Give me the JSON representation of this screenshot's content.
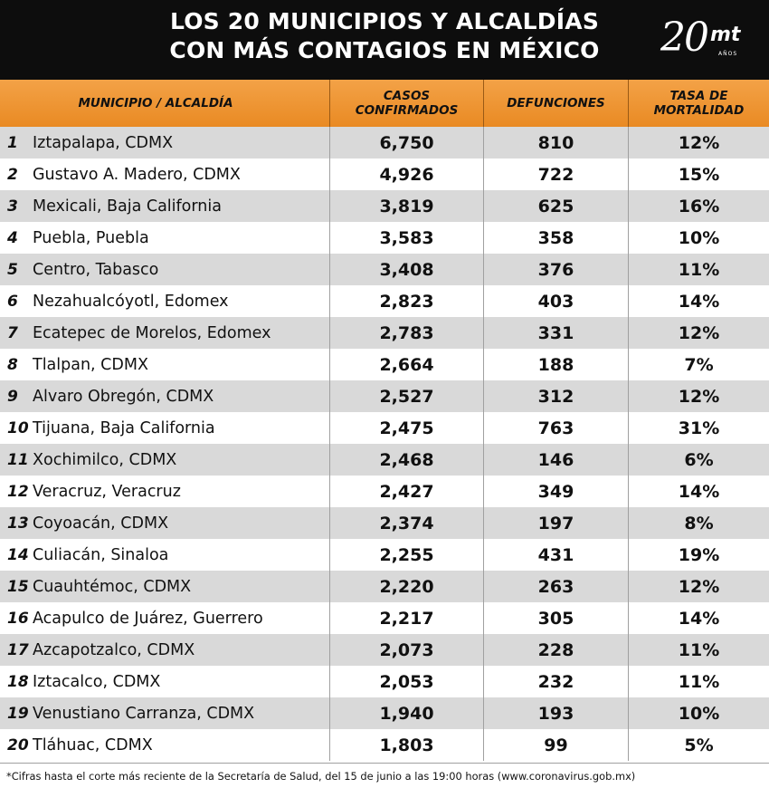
{
  "header": {
    "title_line1": "LOS 20 MUNICIPIOS Y ALCALDÍAS",
    "title_line2": "CON MÁS CONTAGIOS EN MÉXICO",
    "logo_number": "20",
    "logo_text": "mt",
    "logo_subtext": "AÑOS"
  },
  "table": {
    "columns": [
      "MUNICIPIO / ALCALDÍA",
      "CASOS CONFIRMADOS",
      "DEFUNCIONES",
      "TASA DE MORTALIDAD"
    ],
    "rows": [
      {
        "rank": "1",
        "name": "Iztapalapa, CDMX",
        "cases": "6,750",
        "deaths": "810",
        "rate": "12%"
      },
      {
        "rank": "2",
        "name": "Gustavo A. Madero, CDMX",
        "cases": "4,926",
        "deaths": "722",
        "rate": "15%"
      },
      {
        "rank": "3",
        "name": "Mexicali, Baja California",
        "cases": "3,819",
        "deaths": "625",
        "rate": "16%"
      },
      {
        "rank": "4",
        "name": "Puebla, Puebla",
        "cases": "3,583",
        "deaths": "358",
        "rate": "10%"
      },
      {
        "rank": "5",
        "name": "Centro, Tabasco",
        "cases": "3,408",
        "deaths": "376",
        "rate": "11%"
      },
      {
        "rank": "6",
        "name": "Nezahualcóyotl, Edomex",
        "cases": "2,823",
        "deaths": "403",
        "rate": "14%"
      },
      {
        "rank": "7",
        "name": "Ecatepec de Morelos, Edomex",
        "cases": "2,783",
        "deaths": "331",
        "rate": "12%"
      },
      {
        "rank": "8",
        "name": "Tlalpan, CDMX",
        "cases": "2,664",
        "deaths": "188",
        "rate": "7%"
      },
      {
        "rank": "9",
        "name": "Alvaro Obregón, CDMX",
        "cases": "2,527",
        "deaths": "312",
        "rate": "12%"
      },
      {
        "rank": "10",
        "name": "Tijuana, Baja California",
        "cases": "2,475",
        "deaths": "763",
        "rate": "31%"
      },
      {
        "rank": "11",
        "name": "Xochimilco, CDMX",
        "cases": "2,468",
        "deaths": "146",
        "rate": "6%"
      },
      {
        "rank": "12",
        "name": "Veracruz, Veracruz",
        "cases": "2,427",
        "deaths": "349",
        "rate": "14%"
      },
      {
        "rank": "13",
        "name": "Coyoacán, CDMX",
        "cases": "2,374",
        "deaths": "197",
        "rate": "8%"
      },
      {
        "rank": "14",
        "name": "Culiacán, Sinaloa",
        "cases": "2,255",
        "deaths": "431",
        "rate": "19%"
      },
      {
        "rank": "15",
        "name": "Cuauhtémoc, CDMX",
        "cases": "2,220",
        "deaths": "263",
        "rate": "12%"
      },
      {
        "rank": "16",
        "name": "Acapulco de Juárez, Guerrero",
        "cases": "2,217",
        "deaths": "305",
        "rate": "14%"
      },
      {
        "rank": "17",
        "name": "Azcapotzalco, CDMX",
        "cases": "2,073",
        "deaths": "228",
        "rate": "11%"
      },
      {
        "rank": "18",
        "name": "Iztacalco, CDMX",
        "cases": "2,053",
        "deaths": "232",
        "rate": "11%"
      },
      {
        "rank": "19",
        "name": "Venustiano Carranza, CDMX",
        "cases": "1,940",
        "deaths": "193",
        "rate": "10%"
      },
      {
        "rank": "20",
        "name": "Tláhuac, CDMX",
        "cases": "1,803",
        "deaths": "99",
        "rate": "5%"
      }
    ]
  },
  "footnote": "*Cifras hasta el corte más reciente de la Secretaría de Salud, del 15 de junio a las 19:00 horas (www.coronavirus.gob.mx)",
  "colors": {
    "header_bg": "#0d0d0d",
    "table_header": "#ec9231",
    "row_alt": "#d9d9d9"
  }
}
